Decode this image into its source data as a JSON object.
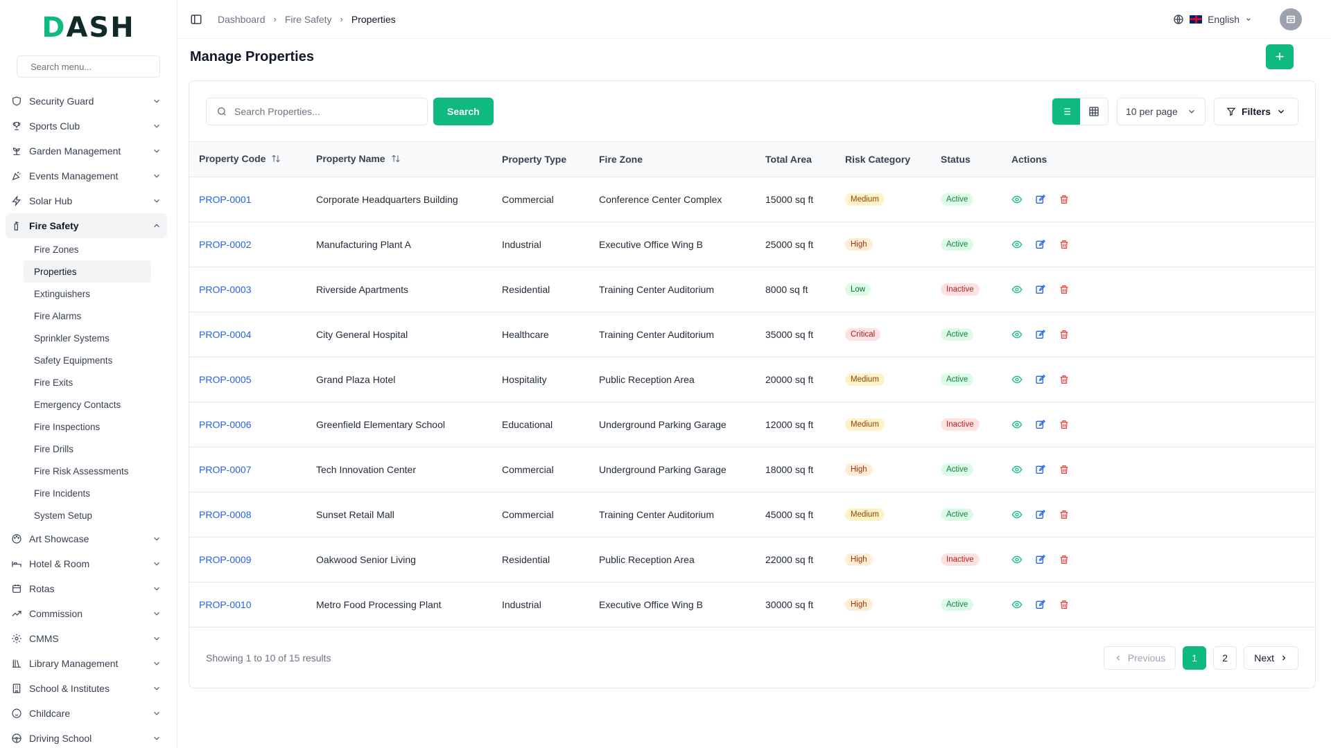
{
  "sidebar": {
    "logo_main": "DASH",
    "search_placeholder": "Search menu...",
    "items_top": [
      {
        "label": "Security Guard",
        "icon": "shield-icon"
      },
      {
        "label": "Sports Club",
        "icon": "trophy-icon"
      },
      {
        "label": "Garden Management",
        "icon": "sprout-icon"
      },
      {
        "label": "Events Management",
        "icon": "party-icon"
      },
      {
        "label": "Solar Hub",
        "icon": "bolt-icon"
      }
    ],
    "active_section": {
      "label": "Fire Safety",
      "icon": "fire-extinguisher-icon"
    },
    "sub_items": [
      "Fire Zones",
      "Properties",
      "Extinguishers",
      "Fire Alarms",
      "Sprinkler Systems",
      "Safety Equipments",
      "Fire Exits",
      "Emergency Contacts",
      "Fire Inspections",
      "Fire Drills",
      "Fire Risk Assessments",
      "Fire Incidents",
      "System Setup"
    ],
    "active_sub": "Properties",
    "items_bottom": [
      {
        "label": "Art Showcase",
        "icon": "palette-icon"
      },
      {
        "label": "Hotel & Room",
        "icon": "bed-icon"
      },
      {
        "label": "Rotas",
        "icon": "calendar-icon"
      },
      {
        "label": "Commission",
        "icon": "trend-icon"
      },
      {
        "label": "CMMS",
        "icon": "gear-icon"
      },
      {
        "label": "Library Management",
        "icon": "library-icon"
      },
      {
        "label": "School & Institutes",
        "icon": "building-icon"
      },
      {
        "label": "Childcare",
        "icon": "baby-icon"
      },
      {
        "label": "Driving School",
        "icon": "steering-icon"
      }
    ]
  },
  "header": {
    "breadcrumbs": [
      "Dashboard",
      "Fire Safety",
      "Properties"
    ],
    "language": "English"
  },
  "page": {
    "title": "Manage Properties",
    "add_label": "+"
  },
  "toolbar": {
    "search_placeholder": "Search Properties...",
    "search_button": "Search",
    "per_page": "10 per page",
    "filters": "Filters"
  },
  "table": {
    "headers": [
      "Property Code",
      "Property Name",
      "Property Type",
      "Fire Zone",
      "Total Area",
      "Risk Category",
      "Status",
      "Actions"
    ],
    "rows": [
      {
        "code": "PROP-0001",
        "name": "Corporate Headquarters Building",
        "type": "Commercial",
        "zone": "Conference Center Complex",
        "area": "15000 sq ft",
        "risk": "Medium",
        "status": "Active"
      },
      {
        "code": "PROP-0002",
        "name": "Manufacturing Plant A",
        "type": "Industrial",
        "zone": "Executive Office Wing B",
        "area": "25000 sq ft",
        "risk": "High",
        "status": "Active"
      },
      {
        "code": "PROP-0003",
        "name": "Riverside Apartments",
        "type": "Residential",
        "zone": "Training Center Auditorium",
        "area": "8000 sq ft",
        "risk": "Low",
        "status": "Inactive"
      },
      {
        "code": "PROP-0004",
        "name": "City General Hospital",
        "type": "Healthcare",
        "zone": "Training Center Auditorium",
        "area": "35000 sq ft",
        "risk": "Critical",
        "status": "Active"
      },
      {
        "code": "PROP-0005",
        "name": "Grand Plaza Hotel",
        "type": "Hospitality",
        "zone": "Public Reception Area",
        "area": "20000 sq ft",
        "risk": "Medium",
        "status": "Active"
      },
      {
        "code": "PROP-0006",
        "name": "Greenfield Elementary School",
        "type": "Educational",
        "zone": "Underground Parking Garage",
        "area": "12000 sq ft",
        "risk": "Medium",
        "status": "Inactive"
      },
      {
        "code": "PROP-0007",
        "name": "Tech Innovation Center",
        "type": "Commercial",
        "zone": "Underground Parking Garage",
        "area": "18000 sq ft",
        "risk": "High",
        "status": "Active"
      },
      {
        "code": "PROP-0008",
        "name": "Sunset Retail Mall",
        "type": "Commercial",
        "zone": "Training Center Auditorium",
        "area": "45000 sq ft",
        "risk": "Medium",
        "status": "Active"
      },
      {
        "code": "PROP-0009",
        "name": "Oakwood Senior Living",
        "type": "Residential",
        "zone": "Public Reception Area",
        "area": "22000 sq ft",
        "risk": "High",
        "status": "Inactive"
      },
      {
        "code": "PROP-0010",
        "name": "Metro Food Processing Plant",
        "type": "Industrial",
        "zone": "Executive Office Wing B",
        "area": "30000 sq ft",
        "risk": "High",
        "status": "Active"
      }
    ]
  },
  "footer": {
    "showing": "Showing 1 to 10 of 15 results",
    "previous": "Previous",
    "next": "Next",
    "pages": [
      "1",
      "2"
    ],
    "current_page": "1"
  },
  "colors": {
    "accent": "#10b981",
    "link": "#2563eb",
    "danger": "#ef4444"
  }
}
